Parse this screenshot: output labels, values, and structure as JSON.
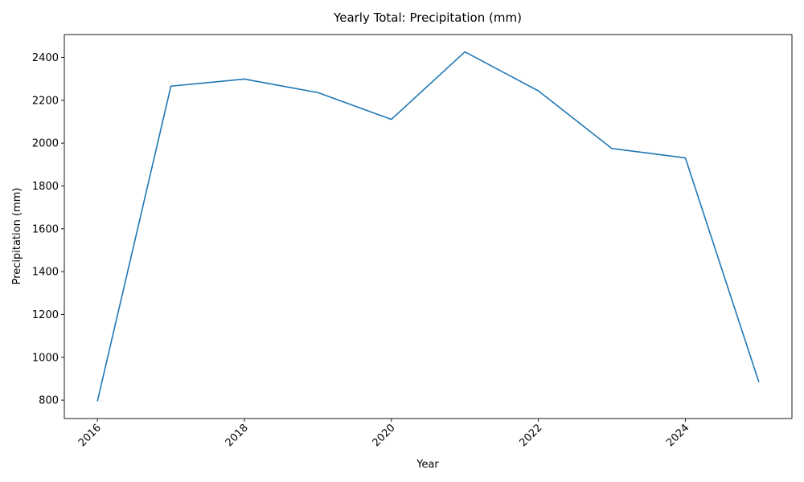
{
  "chart_data": {
    "type": "line",
    "title": "Yearly Total: Precipitation (mm)",
    "xlabel": "Year",
    "ylabel": "Precipitation (mm)",
    "x": [
      2016,
      2017,
      2018,
      2019,
      2020,
      2021,
      2022,
      2023,
      2024,
      2025
    ],
    "series": [
      {
        "values": [
          795,
          2266,
          2299,
          2236,
          2111,
          2426,
          2244,
          1975,
          1931,
          884
        ],
        "color": "#1f77b4"
      }
    ],
    "xlim": [
      2015.55,
      2025.45
    ],
    "ylim": [
      714,
      2507
    ],
    "xticks": [
      2016,
      2018,
      2020,
      2022,
      2024
    ],
    "yticks": [
      800,
      1000,
      1200,
      1400,
      1600,
      1800,
      2000,
      2200,
      2400
    ],
    "xtick_rotation": 45,
    "grid": false,
    "legend": "none"
  }
}
